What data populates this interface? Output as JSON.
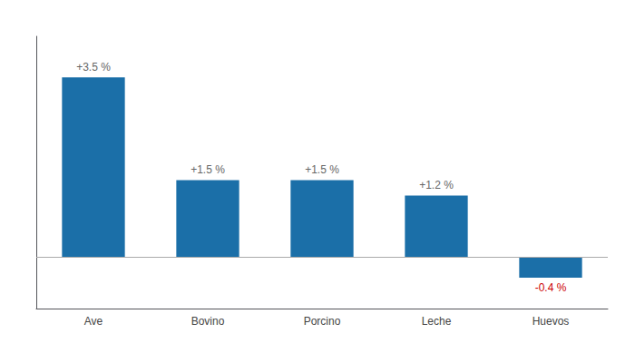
{
  "chart_data": {
    "type": "bar",
    "categories": [
      "Ave",
      "Bovino",
      "Porcino",
      "Leche",
      "Huevos"
    ],
    "values": [
      3.5,
      1.5,
      1.5,
      1.2,
      -0.4
    ],
    "value_labels": [
      "+3.5 %",
      "+1.5 %",
      "+1.5 %",
      "+1.2 %",
      "-0.4 %"
    ],
    "color": "#1b6fa8",
    "ylim": [
      -1.0,
      4.3
    ],
    "grid": false,
    "data_labels": true,
    "tick_labels": "x"
  }
}
